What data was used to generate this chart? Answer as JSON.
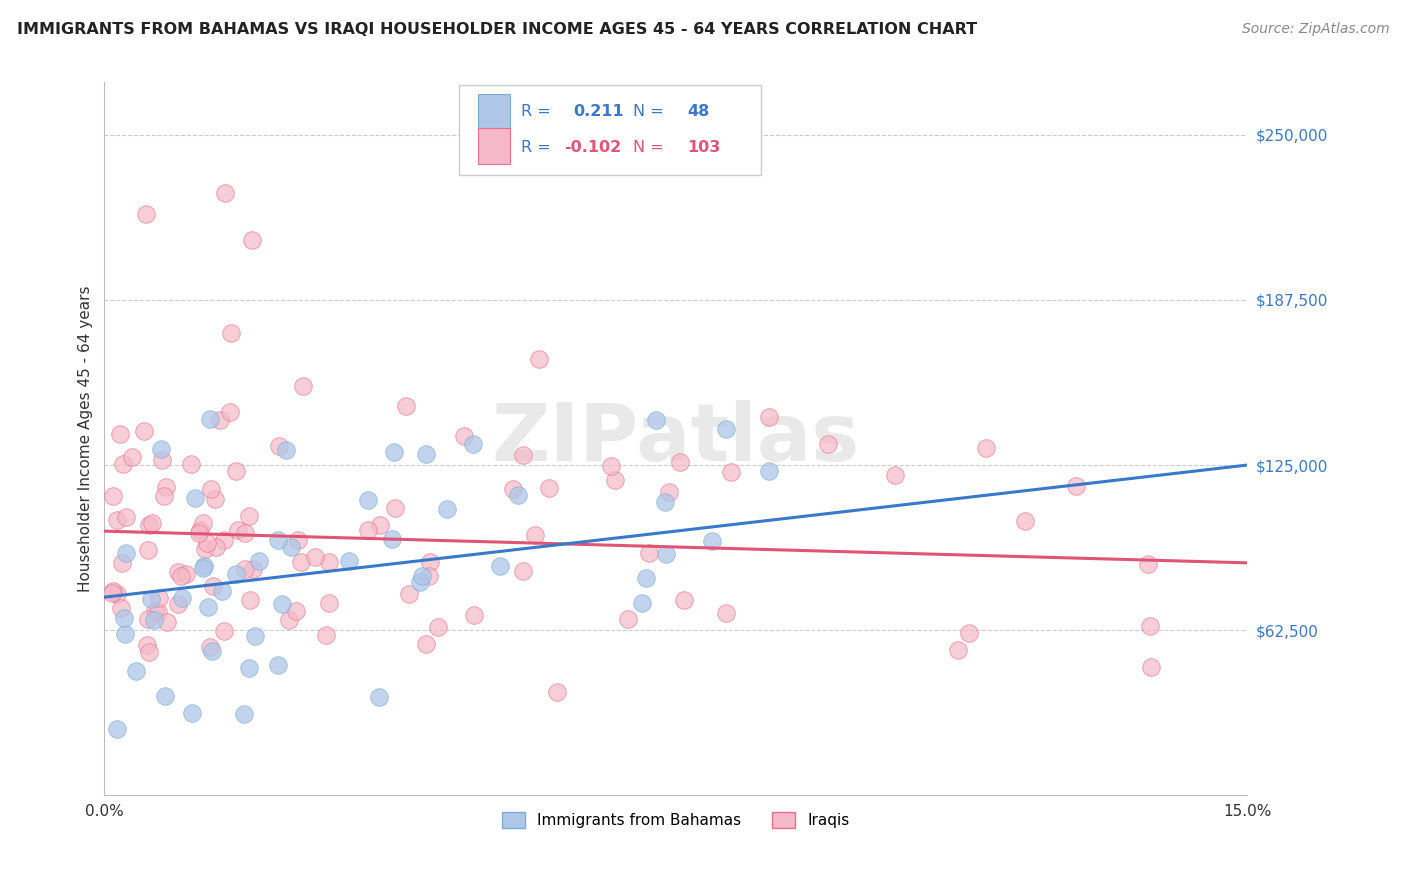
{
  "title": "IMMIGRANTS FROM BAHAMAS VS IRAQI HOUSEHOLDER INCOME AGES 45 - 64 YEARS CORRELATION CHART",
  "source": "Source: ZipAtlas.com",
  "ylabel": "Householder Income Ages 45 - 64 years",
  "y_ticks": [
    0,
    62500,
    125000,
    187500,
    250000
  ],
  "y_tick_labels": [
    "",
    "$62,500",
    "$125,000",
    "$187,500",
    "$250,000"
  ],
  "x_min": 0.0,
  "x_max": 0.15,
  "y_min": 0,
  "y_max": 270000,
  "legend_r1_val": "0.211",
  "legend_r1_n": "48",
  "legend_r2_val": "-0.102",
  "legend_r2_n": "103",
  "watermark": "ZIPatlas",
  "color_blue": "#aec6e8",
  "color_pink": "#f5b8c8",
  "edge_blue": "#7aafd4",
  "edge_pink": "#e8708a",
  "trendline_blue_color": "#3a78c9",
  "trendline_pink_color": "#e05575",
  "legend_text_color": "#3a78c9",
  "legend_r2_color": "#e05575",
  "ytick_color": "#3a78c9",
  "blue_line_y0": 75000,
  "blue_line_y1": 125000,
  "pink_line_y0": 100000,
  "pink_line_y1": 88000
}
